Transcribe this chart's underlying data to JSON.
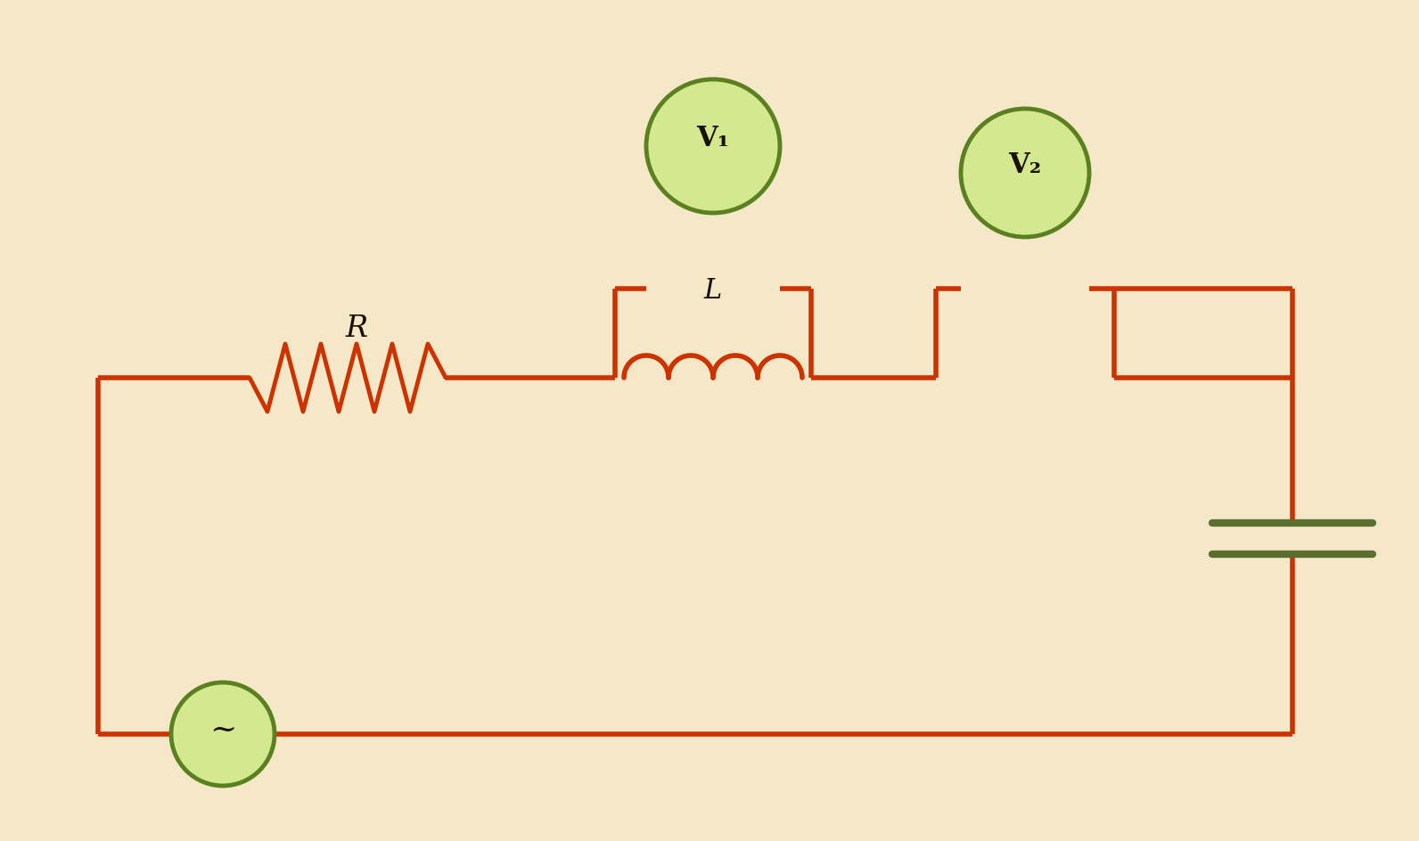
{
  "bg_color": "#f5e8c8",
  "wire_color": "#cc3300",
  "wire_lw": 4.0,
  "resistor_color": "#cc3300",
  "inductor_color": "#cc3300",
  "capacitor_color": "#5a6e30",
  "voltmeter_circle_color": "#5a8020",
  "voltmeter_fill": "#d4e890",
  "source_circle_color": "#5a8020",
  "source_fill": "#d4e890",
  "label_color": "#1a1000",
  "R_label": "R",
  "L_label": "L",
  "V1_label": "V₁",
  "V2_label": "V₂",
  "source_symbol": "~",
  "fig_width": 15.92,
  "fig_height": 9.44,
  "xlim": [
    0,
    15.92
  ],
  "ylim": [
    0,
    9.44
  ]
}
